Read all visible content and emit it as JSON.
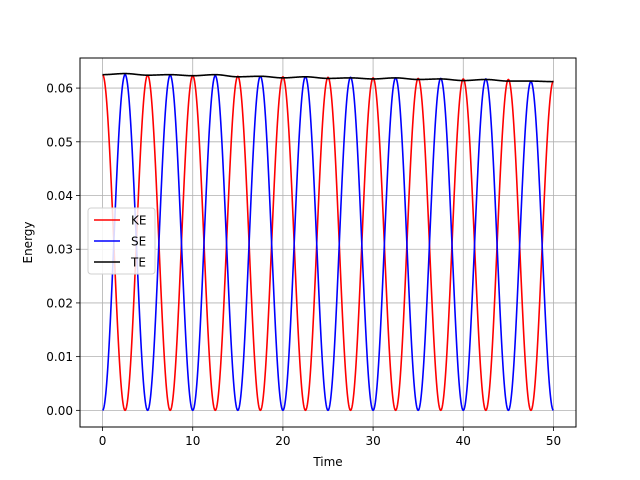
{
  "chart_data": {
    "type": "line",
    "title": "",
    "xlabel": "Time",
    "ylabel": "Energy",
    "xlim": [
      -2.5,
      52.5
    ],
    "ylim": [
      -0.0031,
      0.0656
    ],
    "xticks": [
      0,
      10,
      20,
      30,
      40,
      50
    ],
    "xtick_labels": [
      "0",
      "10",
      "20",
      "30",
      "40",
      "50"
    ],
    "yticks": [
      0.0,
      0.01,
      0.02,
      0.03,
      0.04,
      0.05,
      0.06
    ],
    "ytick_labels": [
      "0.00",
      "0.01",
      "0.02",
      "0.03",
      "0.04",
      "0.05",
      "0.06"
    ],
    "grid": true,
    "legend_position": "center-left",
    "x_range": [
      0,
      50
    ],
    "oscillation_period": 5,
    "series": [
      {
        "name": "KE",
        "color": "#ff0000",
        "x": [
          0,
          2.5,
          5,
          7.5,
          10,
          12.5,
          15,
          17.5,
          20,
          22.5,
          25,
          27.5,
          30,
          32.5,
          35,
          37.5,
          40,
          42.5,
          45,
          47.5,
          50
        ],
        "values": [
          0.0625,
          0,
          0.0624,
          0,
          0.0623,
          0,
          0.0622,
          0,
          0.0621,
          0,
          0.062,
          0,
          0.0619,
          0,
          0.0618,
          0,
          0.0617,
          0,
          0.0616,
          0,
          0.0613
        ]
      },
      {
        "name": "SE",
        "color": "#0000ff",
        "x": [
          0,
          2.5,
          5,
          7.5,
          10,
          12.5,
          15,
          17.5,
          20,
          22.5,
          25,
          27.5,
          30,
          32.5,
          35,
          37.5,
          40,
          42.5,
          45,
          47.5,
          50
        ],
        "values": [
          0,
          0.0625,
          0,
          0.0624,
          0,
          0.0623,
          0,
          0.0622,
          0,
          0.0621,
          0,
          0.062,
          0,
          0.0619,
          0,
          0.0618,
          0,
          0.0617,
          0,
          0.0612,
          0
        ]
      },
      {
        "name": "TE",
        "color": "#000000",
        "x": [
          0,
          2.5,
          5,
          7.5,
          10,
          12.5,
          15,
          17.5,
          20,
          22.5,
          25,
          27.5,
          30,
          32.5,
          35,
          37.5,
          40,
          42.5,
          45,
          47.5,
          50
        ],
        "values": [
          0.0625,
          0.0627,
          0.0624,
          0.0625,
          0.0623,
          0.0625,
          0.0621,
          0.0622,
          0.0619,
          0.0621,
          0.0618,
          0.0619,
          0.0617,
          0.0619,
          0.0616,
          0.0617,
          0.0614,
          0.0616,
          0.0613,
          0.0613,
          0.0612
        ]
      }
    ]
  }
}
